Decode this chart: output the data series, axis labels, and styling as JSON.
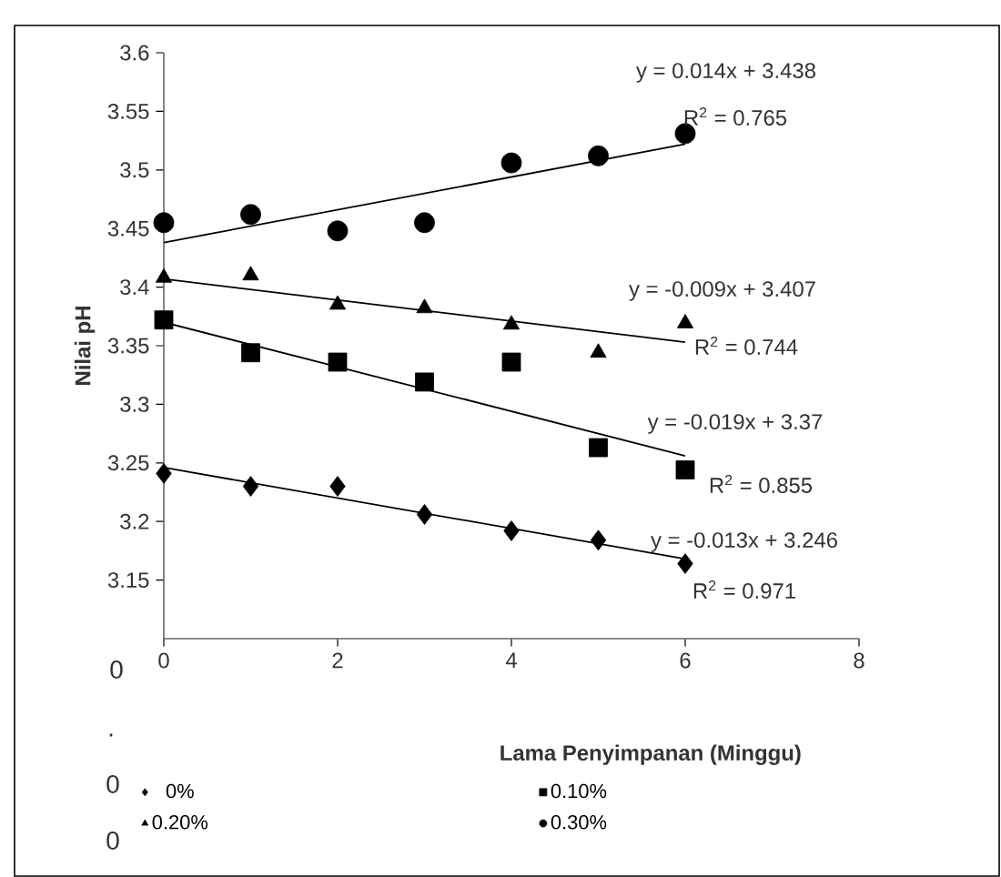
{
  "chart_data": {
    "type": "scatter",
    "xlabel": "Lama Penyimpanan (Minggu)",
    "ylabel": "Nilai pH",
    "xlim": [
      0,
      8
    ],
    "xticks": [
      0,
      2,
      4,
      6,
      8
    ],
    "ylim": [
      3.1,
      3.6
    ],
    "yticks": [
      3.15,
      3.2,
      3.25,
      3.3,
      3.35,
      3.4,
      3.45,
      3.5,
      3.55,
      3.6
    ],
    "legend": "bottom",
    "series": [
      {
        "name": "0%",
        "color": "#000000",
        "marker": "diamond",
        "x": [
          0,
          1,
          2,
          3,
          4,
          5,
          6
        ],
        "values": [
          3.241,
          3.23,
          3.23,
          3.206,
          3.192,
          3.184,
          3.164
        ]
      },
      {
        "name": "0.10%",
        "color": "#000000",
        "marker": "square",
        "x": [
          0,
          1,
          2,
          3,
          4,
          5,
          6
        ],
        "values": [
          3.372,
          3.344,
          3.336,
          3.319,
          3.336,
          3.263,
          3.244
        ]
      },
      {
        "name": "0.20%",
        "color": "#000000",
        "marker": "triangle",
        "x": [
          0,
          1,
          2,
          3,
          4,
          5,
          6
        ],
        "values": [
          3.408,
          3.41,
          3.385,
          3.382,
          3.368,
          3.344,
          3.369
        ]
      },
      {
        "name": "0.30%",
        "color": "#000000",
        "marker": "circle",
        "x": [
          0,
          1,
          2,
          3,
          4,
          5,
          6
        ],
        "values": [
          3.455,
          3.462,
          3.448,
          3.455,
          3.506,
          3.512,
          3.531
        ]
      },
      {
        "type": "line",
        "color": "#000000",
        "marker": "none",
        "x": [
          0,
          6
        ],
        "values": [
          3.246,
          3.168
        ]
      },
      {
        "type": "line",
        "color": "#000000",
        "marker": "none",
        "x": [
          0,
          6
        ],
        "values": [
          3.37,
          3.256
        ]
      },
      {
        "type": "line",
        "color": "#000000",
        "marker": "none",
        "x": [
          0,
          6
        ],
        "values": [
          3.407,
          3.353
        ]
      },
      {
        "type": "line",
        "color": "#000000",
        "marker": "none",
        "x": [
          0,
          6
        ],
        "values": [
          3.438,
          3.522
        ]
      }
    ],
    "annotations": [
      "y = 0.014x + 3.438",
      "R$^{2}$ = 0.765",
      "y = -0.009x + 3.407",
      "R$^{2}$ = 0.744",
      "y = -0.019x + 3.37",
      "R$^{2}$ = 0.855",
      "y = -0.013x + 3.246",
      "R$^{2}$ = 0.971",
      "0",
      ".",
      "0",
      "0"
    ]
  }
}
